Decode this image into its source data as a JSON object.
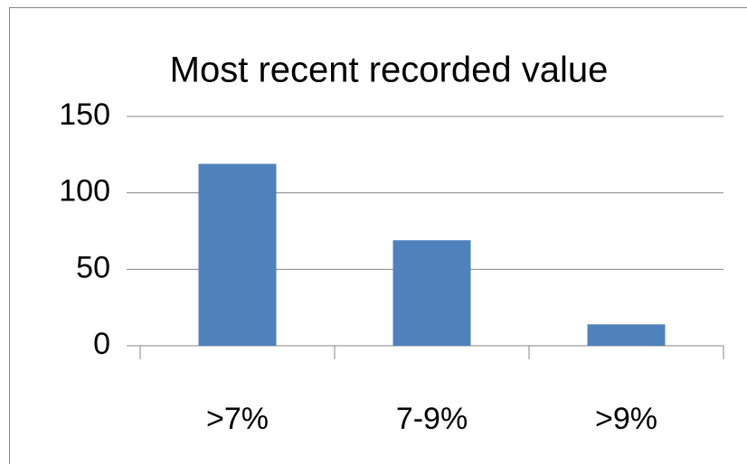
{
  "chart_data": {
    "type": "bar",
    "title": "Most recent recorded value",
    "categories": [
      ">7%",
      "7-9%",
      ">9%"
    ],
    "values": [
      119,
      69,
      14
    ],
    "color": "#4f81bd",
    "ylim": [
      0,
      150
    ],
    "yticks": [
      0,
      50,
      100,
      150
    ],
    "grid": true
  }
}
